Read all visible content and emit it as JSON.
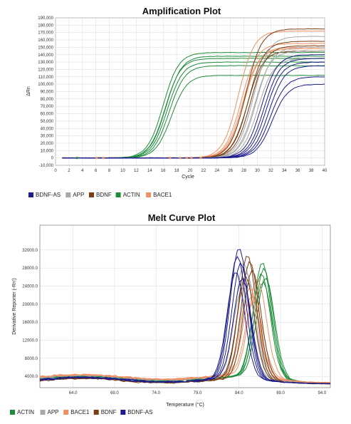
{
  "colors": {
    "BDNF-AS": "#1c1c8c",
    "APP": "#a7a7a7",
    "BDNF": "#7a3d14",
    "ACTIN": "#1e8c3a",
    "BACE1": "#ef9063"
  },
  "chart_data": [
    {
      "type": "line",
      "title": "Amplification Plot",
      "xlabel": "Cycle",
      "ylabel": "ΔRn",
      "xlim": [
        0,
        40
      ],
      "ylim": [
        -10000,
        190000
      ],
      "xticks": [
        "0",
        "2",
        "4",
        "6",
        "8",
        "10",
        "12",
        "14",
        "16",
        "18",
        "20",
        "22",
        "24",
        "26",
        "28",
        "30",
        "32",
        "34",
        "36",
        "38",
        "40"
      ],
      "yticks": [
        "-10,000",
        "0",
        "10,000",
        "20,000",
        "30,000",
        "40,000",
        "50,000",
        "60,000",
        "70,000",
        "80,000",
        "90,000",
        "100,000",
        "110,000",
        "120,000",
        "130,000",
        "140,000",
        "150,000",
        "160,000",
        "170,000",
        "180,000",
        "190,000"
      ],
      "grid": true,
      "legend_position": "bottom-left",
      "legend": [
        "BDNF-AS",
        "APP",
        "BDNF",
        "ACTIN",
        "BACE1"
      ],
      "series": [
        {
          "name": "ACTIN",
          "curves": [
            {
              "plateau": 143000,
              "midpoint": 16.0
            },
            {
              "plateau": 135000,
              "midpoint": 16.3
            },
            {
              "plateau": 130000,
              "midpoint": 16.6
            },
            {
              "plateau": 125000,
              "midpoint": 16.9
            },
            {
              "plateau": 112000,
              "midpoint": 17.2
            },
            {
              "plateau": 138000,
              "midpoint": 16.4
            }
          ]
        },
        {
          "name": "BACE1",
          "curves": [
            {
              "plateau": 172000,
              "midpoint": 27.2
            },
            {
              "plateau": 155000,
              "midpoint": 27.6
            },
            {
              "plateau": 150000,
              "midpoint": 28.0
            },
            {
              "plateau": 148000,
              "midpoint": 27.8
            }
          ]
        },
        {
          "name": "BDNF",
          "curves": [
            {
              "plateau": 175000,
              "midpoint": 28.3
            },
            {
              "plateau": 158000,
              "midpoint": 28.7
            },
            {
              "plateau": 152000,
              "midpoint": 29.0
            },
            {
              "plateau": 145000,
              "midpoint": 28.5
            }
          ]
        },
        {
          "name": "APP",
          "curves": [
            {
              "plateau": 165000,
              "midpoint": 29.4
            },
            {
              "plateau": 150000,
              "midpoint": 29.8
            },
            {
              "plateau": 135000,
              "midpoint": 30.1
            },
            {
              "plateau": 145000,
              "midpoint": 29.6
            }
          ]
        },
        {
          "name": "BDNF-AS",
          "curves": [
            {
              "plateau": 140000,
              "midpoint": 30.6
            },
            {
              "plateau": 135000,
              "midpoint": 31.0
            },
            {
              "plateau": 130000,
              "midpoint": 31.3
            },
            {
              "plateau": 125000,
              "midpoint": 31.7
            },
            {
              "plateau": 100000,
              "midpoint": 32.2
            },
            {
              "plateau": 110000,
              "midpoint": 31.9
            }
          ]
        }
      ]
    },
    {
      "type": "line",
      "title": "Melt Curve Plot",
      "xlabel": "Temperature (°C)",
      "ylabel": "Derivative Reporter (-Rn')",
      "xlim": [
        60.0,
        95.0
      ],
      "ylim": [
        1500,
        37500
      ],
      "xticks": [
        "64.0",
        "69.0",
        "74.0",
        "79.0",
        "84.0",
        "89.0",
        "94.0"
      ],
      "yticks": [
        "4000.0",
        "8000.0",
        "12000.0",
        "16000.0",
        "20000.0",
        "24000.0",
        "28000.0",
        "32000.0"
      ],
      "grid": true,
      "legend_position": "bottom-left",
      "legend": [
        "ACTIN",
        "APP",
        "BACE1",
        "BDNF",
        "BDNF-AS"
      ],
      "series": [
        {
          "name": "ACTIN",
          "curves": [
            {
              "peak_temp": 86.8,
              "peak": 29000
            },
            {
              "peak_temp": 87.0,
              "peak": 27500
            },
            {
              "peak_temp": 86.7,
              "peak": 26500
            },
            {
              "peak_temp": 87.2,
              "peak": 25500
            },
            {
              "peak_temp": 86.9,
              "peak": 24500
            }
          ]
        },
        {
          "name": "APP",
          "curves": [
            {
              "peak_temp": 84.6,
              "peak": 28500
            },
            {
              "peak_temp": 84.9,
              "peak": 26500
            },
            {
              "peak_temp": 85.2,
              "peak": 24000
            },
            {
              "peak_temp": 84.4,
              "peak": 23000
            }
          ]
        },
        {
          "name": "BACE1",
          "curves": [
            {
              "peak_temp": 85.3,
              "peak": 23000
            },
            {
              "peak_temp": 85.5,
              "peak": 21000
            },
            {
              "peak_temp": 85.8,
              "peak": 20000
            },
            {
              "peak_temp": 86.2,
              "peak": 25000
            }
          ]
        },
        {
          "name": "BDNF",
          "curves": [
            {
              "peak_temp": 85.0,
              "peak": 31000
            },
            {
              "peak_temp": 85.3,
              "peak": 29500
            },
            {
              "peak_temp": 85.6,
              "peak": 27500
            },
            {
              "peak_temp": 84.8,
              "peak": 26000
            }
          ]
        },
        {
          "name": "BDNF-AS",
          "curves": [
            {
              "peak_temp": 84.0,
              "peak": 32500
            },
            {
              "peak_temp": 83.8,
              "peak": 30500
            },
            {
              "peak_temp": 84.2,
              "peak": 29000
            },
            {
              "peak_temp": 83.6,
              "peak": 27000
            },
            {
              "peak_temp": 84.4,
              "peak": 25500
            }
          ]
        }
      ]
    }
  ]
}
